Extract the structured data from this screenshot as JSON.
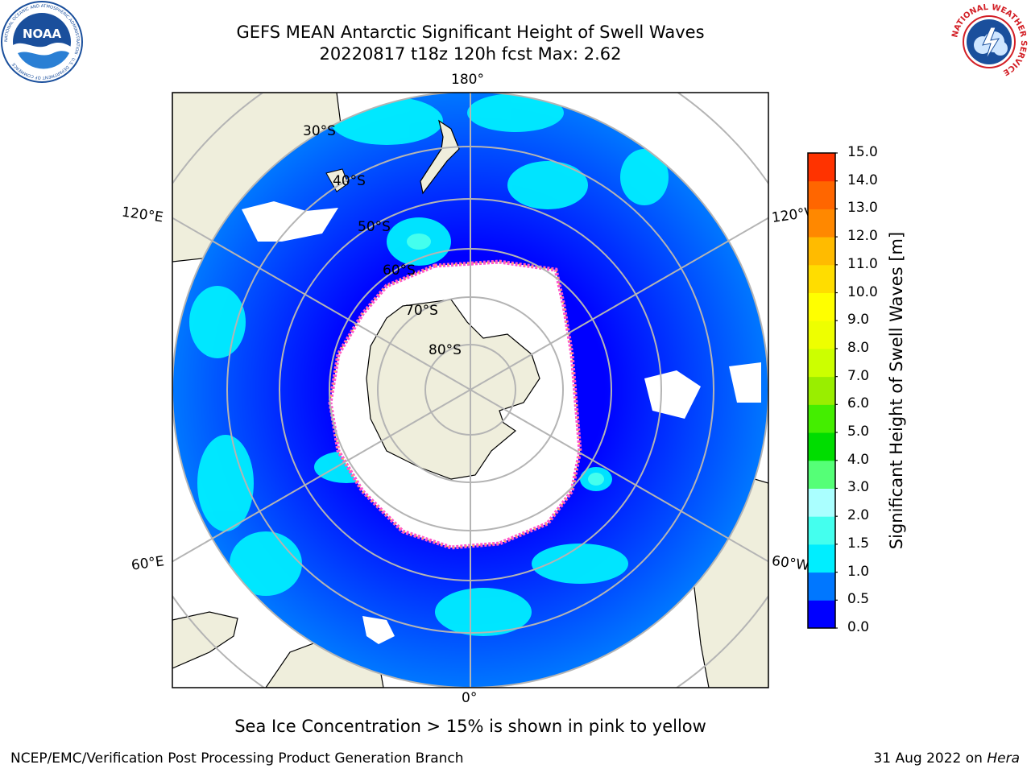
{
  "header": {
    "title_line1": "GEFS MEAN Antarctic Significant Height of Swell Waves",
    "title_line2": "20220817 t18z 120h fcst   Max: 2.62"
  },
  "logos": {
    "left": {
      "text": "NOAA",
      "ring_text": "NATIONAL OCEANIC AND ATMOSPHERIC ADMINISTRATION · U.S. DEPARTMENT OF COMMERCE",
      "color": "#1a4f9c"
    },
    "right": {
      "ring_text": "NATIONAL WEATHER SERVICE",
      "color": "#d31f26"
    }
  },
  "map": {
    "projection": "south-polar-stereographic",
    "longitude_labels": {
      "top": "180°",
      "bottom": "0°",
      "upper_left": "120°E",
      "upper_right": "120°W",
      "lower_left": "60°E",
      "lower_right": "60°W"
    },
    "latitude_labels": [
      "30°S",
      "40°S",
      "50°S",
      "60°S",
      "70°S",
      "80°S"
    ],
    "colors": {
      "land": "#efeedc",
      "ice_free_white": "#ffffff",
      "grid": "#b4b4b4",
      "ice_edge_pink": "#ff55cc",
      "ice_edge_yellow": "#ffcc33"
    }
  },
  "colorbar": {
    "label": "Significant Height of Swell Waves [m]",
    "ticks": [
      "0.0",
      "0.5",
      "1.0",
      "1.5",
      "2.0",
      "3.0",
      "4.0",
      "5.0",
      "6.0",
      "7.0",
      "8.0",
      "9.0",
      "10.0",
      "11.0",
      "12.0",
      "13.0",
      "14.0",
      "15.0"
    ],
    "colors": [
      "#0000ff",
      "#0077ff",
      "#00eeff",
      "#44ffee",
      "#aaffff",
      "#55ff77",
      "#00dd00",
      "#44ee00",
      "#99ee00",
      "#ccff00",
      "#eeff00",
      "#ffff00",
      "#ffdd00",
      "#ffbb00",
      "#ff8800",
      "#ff6600",
      "#ff3300",
      "#ff0000"
    ]
  },
  "footer": {
    "note": "Sea Ice Concentration > 15% is shown in pink to yellow",
    "credit": "NCEP/EMC/Verification Post Processing Product Generation Branch",
    "date": "31 Aug 2022 on",
    "host": "Hera"
  }
}
